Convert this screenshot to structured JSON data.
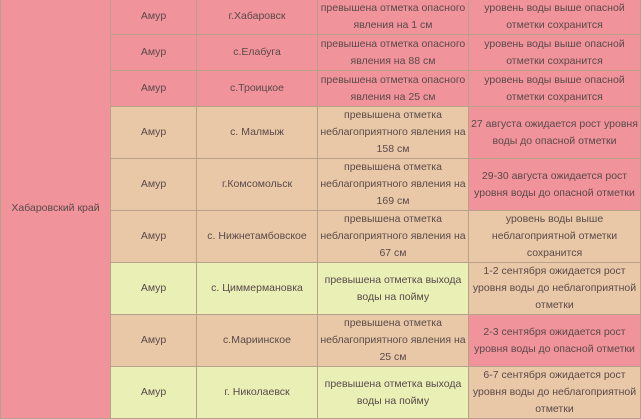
{
  "region": "Хабаровский край",
  "rows": [
    {
      "river": "Амур",
      "place": "г.Хабаровск",
      "status": "превышена отметка опасного явления на 1 см",
      "forecast": "уровень воды выше опасной отметки сохранится",
      "c": "r",
      "fc": "r",
      "h": "s"
    },
    {
      "river": "Амур",
      "place": "с.Елабуга",
      "status": "превышена отметка опасного явления на 88 см",
      "forecast": "уровень воды выше опасной отметки сохранится",
      "c": "r",
      "fc": "r",
      "h": "s"
    },
    {
      "river": "Амур",
      "place": "с.Троицкое",
      "status": "превышена отметка опасного явления на 25 см",
      "forecast": "уровень воды выше опасной отметки сохранится",
      "c": "r",
      "fc": "r",
      "h": "s"
    },
    {
      "river": "Амур",
      "place": "с. Малмыж",
      "status": "превышена отметка неблагоприятного явления на 158 см",
      "forecast": "27 августа ожидается рост уровня воды до опасной отметки",
      "c": "t",
      "fc": "r",
      "h": "m"
    },
    {
      "river": "Амур",
      "place": "г.Комсомольск",
      "status": "превышена отметка неблагоприятного явления на 169 см",
      "forecast": "29-30 августа ожидается рост уровня воды до опасной отметки",
      "c": "t",
      "fc": "r",
      "h": "m"
    },
    {
      "river": "Амур",
      "place": "с. Нижнетамбовское",
      "status": "превышена отметка неблагоприятного явления на 67 см",
      "forecast": "уровень воды выше неблагоприятной отметки сохранится",
      "c": "t",
      "fc": "t",
      "h": "m"
    },
    {
      "river": "Амур",
      "place": "с. Циммермановка",
      "status": "превышена отметка выхода воды на пойму",
      "forecast": "1-2 сентября ожидается рост уровня воды до неблагоприятной отметки",
      "c": "g",
      "fc": "t",
      "h": "m"
    },
    {
      "river": "Амур",
      "place": "с.Мариинское",
      "status": "превышена отметка неблагоприятного явления на 25 см",
      "forecast": "2-3 сентября ожидается рост уровня воды до опасной отметки",
      "c": "t",
      "fc": "r",
      "h": "m"
    },
    {
      "river": "Амур",
      "place": "г. Николаевск",
      "status": "превышена отметка выхода воды на пойму",
      "forecast": "6-7 сентября ожидается рост уровня воды до неблагоприятной отметки",
      "c": "g",
      "fc": "t",
      "h": "m"
    }
  ]
}
